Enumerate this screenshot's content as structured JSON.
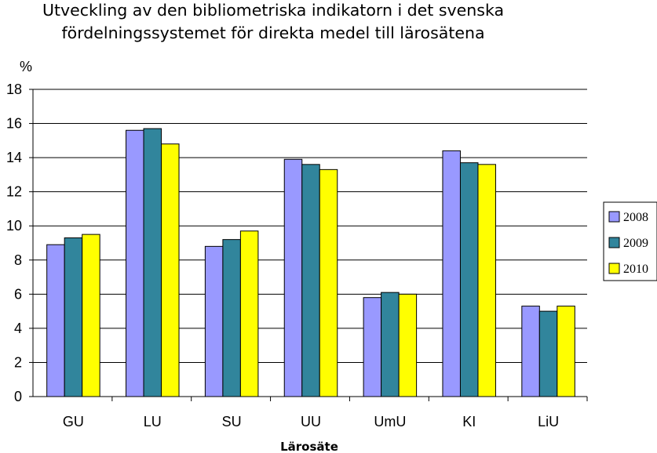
{
  "chart_data": {
    "type": "bar",
    "title_lines": [
      "Utveckling av den bibliometriska indikatorn i det svenska",
      "fördelningssystemet för direkta medel till lärosätena"
    ],
    "ylabel": "%",
    "xlabel": "Lärosäte",
    "ylim": [
      0,
      18
    ],
    "yticks": [
      "0",
      "2",
      "4",
      "6",
      "8",
      "10",
      "12",
      "14",
      "16",
      "18"
    ],
    "grid": true,
    "legend_position": "right",
    "categories": [
      "GU",
      "LU",
      "SU",
      "UU",
      "UmU",
      "KI",
      "LiU"
    ],
    "series": [
      {
        "name": "2008",
        "color": "#9999ff",
        "values": [
          8.9,
          15.6,
          8.8,
          13.9,
          5.8,
          14.4,
          5.3
        ]
      },
      {
        "name": "2009",
        "color": "#31859c",
        "values": [
          9.3,
          15.7,
          9.2,
          13.6,
          6.1,
          13.7,
          5.0
        ]
      },
      {
        "name": "2010",
        "color": "#ffff00",
        "values": [
          9.5,
          14.8,
          9.7,
          13.3,
          6.0,
          13.6,
          5.3
        ]
      }
    ]
  }
}
